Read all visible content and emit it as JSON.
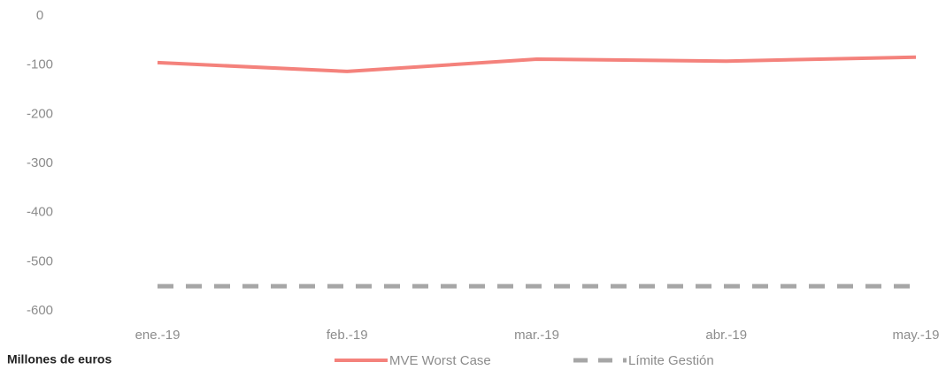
{
  "chart_data": {
    "type": "line",
    "categories": [
      "ene.-19",
      "feb.-19",
      "mar.-19",
      "abr.-19",
      "may.-19"
    ],
    "series": [
      {
        "name": "MVE Worst Case",
        "color": "#f4827c",
        "values": [
          -95,
          -113,
          -88,
          -92,
          -84
        ]
      },
      {
        "name": "Límite Gestión",
        "color": "#a6a6a6",
        "dashed": true,
        "values": [
          -550,
          -550,
          -550,
          -550,
          -550
        ]
      }
    ],
    "ylim": [
      -600,
      0
    ],
    "yticks": [
      0,
      -100,
      -200,
      -300,
      -400,
      -500,
      -600
    ],
    "y_axis_label": "Millones de euros",
    "grid": false,
    "legend": "bottom"
  }
}
